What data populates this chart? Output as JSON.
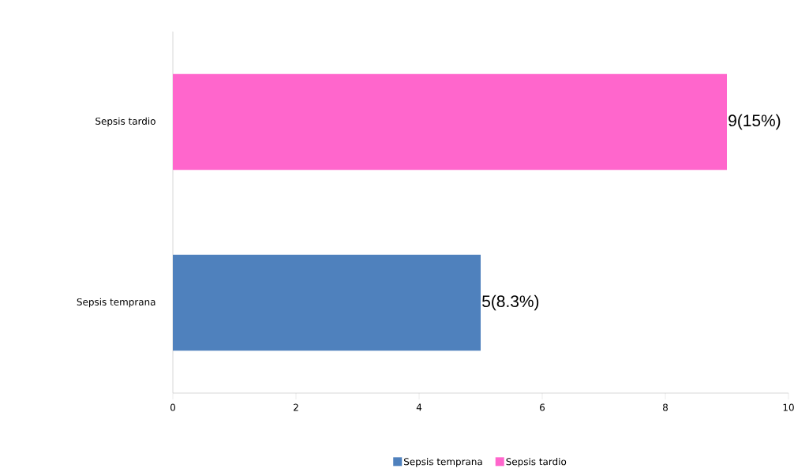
{
  "chart_data": {
    "type": "bar",
    "orientation": "horizontal",
    "categories": [
      "Sepsis tardio",
      "Sepsis temprana"
    ],
    "series": [
      {
        "name": "Sepsis temprana",
        "color": "#4f81bd",
        "values": [
          null,
          5
        ],
        "value_labels": [
          null,
          "5(8.3%)"
        ]
      },
      {
        "name": "Sepsis tardio",
        "color": "#ff66cc",
        "values": [
          9,
          null
        ],
        "value_labels": [
          "9(15%)",
          null
        ]
      }
    ],
    "xlim": [
      0,
      10
    ],
    "xticks": [
      0,
      2,
      4,
      6,
      8,
      10
    ],
    "legend": "bottom",
    "grid": false
  }
}
